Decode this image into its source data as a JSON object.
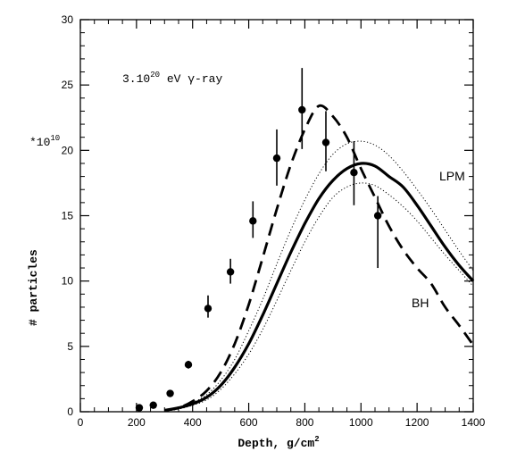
{
  "chart_data": {
    "type": "line",
    "title": "",
    "xlabel": "Depth, g/cm",
    "xlabel_sup": "2",
    "ylabel": "# particles",
    "yscale_label": "*10",
    "yscale_sup": "10",
    "annotation": {
      "prefix": "3.10",
      "sup": "20",
      "suffix": " eV γ-ray"
    },
    "xlim": [
      0,
      1400
    ],
    "ylim": [
      0,
      30
    ],
    "xticks": [
      0,
      200,
      400,
      600,
      800,
      1000,
      1200,
      1400
    ],
    "yticks": [
      0,
      5,
      10,
      15,
      20,
      25,
      30
    ],
    "x_minor_step": 50,
    "y_minor_step": 1,
    "grid": false,
    "series": [
      {
        "name": "LPM",
        "style": "solid-thick",
        "x": [
          300,
          350,
          400,
          450,
          500,
          550,
          600,
          650,
          700,
          750,
          800,
          850,
          900,
          950,
          1000,
          1050,
          1100,
          1150,
          1200,
          1250,
          1300,
          1350,
          1400
        ],
        "y": [
          0.1,
          0.3,
          0.6,
          1.1,
          2.0,
          3.4,
          5.2,
          7.4,
          9.8,
          12.2,
          14.4,
          16.3,
          17.7,
          18.6,
          19.0,
          18.8,
          18.0,
          17.2,
          15.8,
          14.2,
          12.6,
          11.2,
          10.0
        ]
      },
      {
        "name": "LPM upper bound",
        "style": "dotted",
        "x": [
          300,
          350,
          400,
          450,
          500,
          550,
          600,
          650,
          700,
          750,
          800,
          850,
          900,
          950,
          1000,
          1050,
          1100,
          1150,
          1200,
          1250,
          1300,
          1350,
          1400
        ],
        "y": [
          0.1,
          0.3,
          0.7,
          1.3,
          2.4,
          4.0,
          6.2,
          8.6,
          11.3,
          13.9,
          16.2,
          18.2,
          19.7,
          20.5,
          20.7,
          20.4,
          19.6,
          18.4,
          17.0,
          15.5,
          13.9,
          12.3,
          10.8
        ]
      },
      {
        "name": "LPM lower bound",
        "style": "dotted",
        "x": [
          300,
          350,
          400,
          450,
          500,
          550,
          600,
          650,
          700,
          750,
          800,
          850,
          900,
          950,
          1000,
          1050,
          1100,
          1150,
          1200,
          1250,
          1300,
          1350,
          1400
        ],
        "y": [
          0.05,
          0.2,
          0.5,
          0.9,
          1.7,
          2.9,
          4.4,
          6.3,
          8.5,
          10.8,
          13.0,
          14.9,
          16.4,
          17.2,
          17.5,
          17.3,
          16.6,
          15.7,
          14.6,
          13.3,
          12.0,
          10.8,
          9.6
        ]
      },
      {
        "name": "BH",
        "style": "dashed-thick",
        "x": [
          300,
          350,
          400,
          450,
          500,
          550,
          600,
          650,
          700,
          750,
          800,
          850,
          900,
          950,
          1000,
          1050,
          1100,
          1150,
          1200,
          1250,
          1300,
          1350,
          1400
        ],
        "y": [
          0.1,
          0.3,
          0.8,
          1.6,
          3.0,
          5.2,
          8.2,
          11.8,
          15.5,
          18.9,
          21.6,
          23.4,
          22.6,
          21.0,
          18.6,
          16.4,
          14.2,
          12.4,
          11.0,
          9.8,
          8.0,
          6.6,
          5.1
        ]
      }
    ],
    "points": {
      "name": "data",
      "x": [
        210,
        260,
        320,
        385,
        455,
        535,
        615,
        700,
        790,
        875,
        975,
        1060
      ],
      "y": [
        0.3,
        0.5,
        1.4,
        3.6,
        7.9,
        10.7,
        14.6,
        19.4,
        23.1,
        20.6,
        18.3,
        15.0
      ],
      "err_low": [
        0,
        0,
        0,
        0.3,
        0.7,
        0.9,
        1.3,
        2.1,
        3.0,
        2.2,
        2.5,
        4.0
      ],
      "err_high": [
        0,
        0,
        0,
        0.3,
        1.0,
        1.0,
        1.5,
        2.2,
        3.2,
        2.4,
        2.4,
        1.5
      ]
    }
  }
}
